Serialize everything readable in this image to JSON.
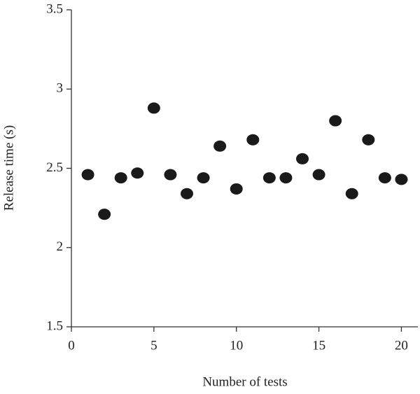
{
  "chart_data": {
    "type": "scatter",
    "xlabel": "Number of tests",
    "ylabel": "Release time (s)",
    "x": [
      1,
      2,
      3,
      4,
      5,
      6,
      7,
      8,
      9,
      10,
      11,
      12,
      13,
      14,
      15,
      16,
      17,
      18,
      19,
      20
    ],
    "y": [
      2.46,
      2.21,
      2.44,
      2.47,
      2.88,
      2.46,
      2.34,
      2.44,
      2.64,
      2.37,
      2.68,
      2.44,
      2.44,
      2.56,
      2.46,
      2.8,
      2.34,
      2.68,
      2.44,
      2.43
    ],
    "color": "#1a1a1a",
    "xlim": [
      0,
      21
    ],
    "xticks": [
      0,
      5,
      10,
      15,
      20
    ],
    "ylim": [
      1.5,
      3.5
    ],
    "yticks": [
      1.5,
      2,
      2.5,
      3,
      3.5
    ]
  }
}
